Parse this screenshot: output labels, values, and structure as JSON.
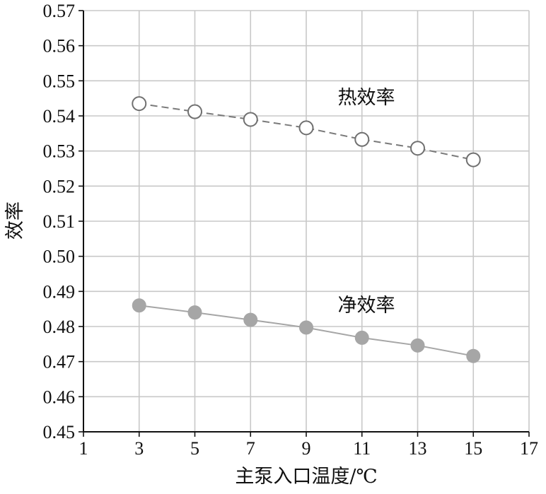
{
  "chart_data": {
    "type": "line",
    "xlabel": "主泵入口温度/℃",
    "ylabel": "效率",
    "xlim": [
      1,
      17
    ],
    "ylim": [
      0.45,
      0.57
    ],
    "x_ticks": [
      "1",
      "3",
      "5",
      "7",
      "9",
      "11",
      "13",
      "15",
      "17"
    ],
    "y_ticks": [
      "0.45",
      "0.46",
      "0.47",
      "0.48",
      "0.49",
      "0.50",
      "0.51",
      "0.52",
      "0.53",
      "0.54",
      "0.55",
      "0.56",
      "0.57"
    ],
    "grid": true,
    "x": [
      3,
      5,
      7,
      9,
      11,
      13,
      15
    ],
    "series": [
      {
        "name": "热效率",
        "values": [
          0.5435,
          0.5412,
          0.539,
          0.5366,
          0.5333,
          0.5308,
          0.5275
        ],
        "line_style": "dashed",
        "marker": "open-circle",
        "color": "#7a7a7a"
      },
      {
        "name": "净效率",
        "values": [
          0.486,
          0.484,
          0.4819,
          0.4797,
          0.4768,
          0.4746,
          0.4716
        ],
        "line_style": "solid",
        "marker": "filled-circle",
        "color": "#a6a6a6"
      }
    ]
  }
}
